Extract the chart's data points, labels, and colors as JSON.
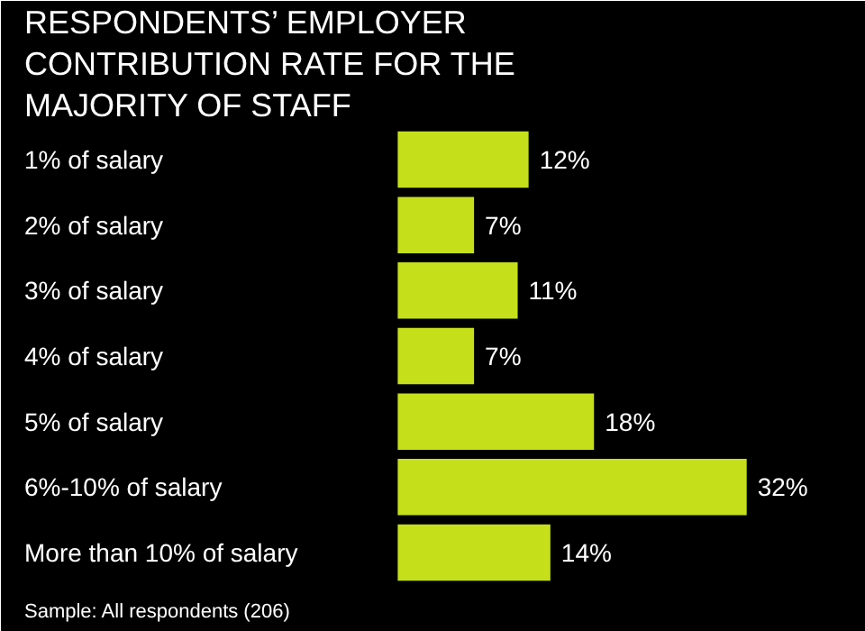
{
  "chart_data": {
    "type": "bar",
    "orientation": "horizontal",
    "title": "RESPONDENTS’ EMPLOYER CONTRIBUTION RATE FOR THE MAJORITY OF STAFF",
    "categories": [
      "1% of salary",
      "2% of salary",
      "3% of salary",
      "4% of salary",
      "5% of salary",
      "6%-10% of salary",
      "More than 10% of salary"
    ],
    "values": [
      12,
      7,
      11,
      7,
      18,
      32,
      14
    ],
    "value_labels": [
      "12%",
      "7%",
      "11%",
      "7%",
      "18%",
      "32%",
      "14%"
    ],
    "color": "#c5e01b",
    "annotations": [
      "Sample: All respondents (206)"
    ]
  }
}
